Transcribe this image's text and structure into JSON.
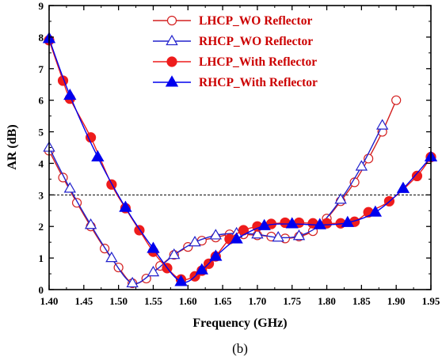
{
  "chart_data": {
    "type": "line",
    "xlabel": "Frequency (GHz)",
    "ylabel": "AR (dB)",
    "caption": "(b)",
    "xlim": [
      1.4,
      1.95
    ],
    "ylim": [
      0,
      9
    ],
    "x_ticks": [
      "1.40",
      "1.45",
      "1.50",
      "1.55",
      "1.60",
      "1.65",
      "1.70",
      "1.75",
      "1.80",
      "1.85",
      "1.90",
      "1.95"
    ],
    "y_ticks": [
      "0",
      "1",
      "2",
      "3",
      "4",
      "5",
      "6",
      "7",
      "8",
      "9"
    ],
    "reference_line": {
      "y": 3,
      "style": "dashed"
    },
    "legend_position": "top-center",
    "series": [
      {
        "name": "LHCP_WO Reflector",
        "color": "#d42020",
        "marker": "circle-open",
        "x": [
          1.4,
          1.42,
          1.44,
          1.46,
          1.48,
          1.5,
          1.52,
          1.54,
          1.56,
          1.58,
          1.6,
          1.62,
          1.64,
          1.66,
          1.68,
          1.7,
          1.72,
          1.74,
          1.76,
          1.78,
          1.8,
          1.82,
          1.84,
          1.86,
          1.88,
          1.9
        ],
        "y": [
          4.4,
          3.55,
          2.75,
          2.0,
          1.3,
          0.7,
          0.2,
          0.35,
          0.75,
          1.1,
          1.35,
          1.55,
          1.65,
          1.75,
          1.75,
          1.72,
          1.68,
          1.62,
          1.68,
          1.85,
          2.25,
          2.8,
          3.4,
          4.15,
          5.0,
          6.0
        ]
      },
      {
        "name": "RHCP_WO Reflector",
        "color": "#2020cc",
        "marker": "triangle-open",
        "x": [
          1.4,
          1.43,
          1.46,
          1.49,
          1.52,
          1.55,
          1.58,
          1.61,
          1.64,
          1.67,
          1.7,
          1.73,
          1.76,
          1.79,
          1.82,
          1.85,
          1.88
        ],
        "y": [
          4.5,
          3.2,
          2.05,
          1.0,
          0.2,
          0.55,
          1.1,
          1.5,
          1.72,
          1.78,
          1.75,
          1.65,
          1.7,
          2.05,
          2.85,
          3.9,
          5.2
        ]
      },
      {
        "name": "LHCP_With Reflector",
        "color": "#ee1c1c",
        "marker": "circle-filled",
        "x": [
          1.4,
          1.42,
          1.43,
          1.46,
          1.49,
          1.51,
          1.53,
          1.55,
          1.57,
          1.59,
          1.61,
          1.62,
          1.63,
          1.64,
          1.66,
          1.68,
          1.7,
          1.72,
          1.74,
          1.76,
          1.78,
          1.8,
          1.82,
          1.84,
          1.86,
          1.89,
          1.93,
          1.95
        ],
        "y": [
          7.9,
          6.62,
          6.05,
          4.82,
          3.33,
          2.58,
          1.88,
          1.2,
          0.68,
          0.32,
          0.42,
          0.6,
          0.82,
          1.05,
          1.6,
          1.88,
          2.0,
          2.08,
          2.12,
          2.12,
          2.1,
          2.1,
          2.1,
          2.15,
          2.45,
          2.8,
          3.6,
          4.2
        ]
      },
      {
        "name": "RHCP_With Reflector",
        "color": "#0000ee",
        "marker": "triangle-filled",
        "x": [
          1.4,
          1.43,
          1.47,
          1.51,
          1.55,
          1.59,
          1.62,
          1.64,
          1.67,
          1.71,
          1.75,
          1.79,
          1.83,
          1.87,
          1.91,
          1.95
        ],
        "y": [
          7.95,
          6.15,
          4.2,
          2.6,
          1.3,
          0.25,
          0.62,
          1.05,
          1.6,
          2.02,
          2.08,
          2.05,
          2.12,
          2.45,
          3.2,
          4.2
        ]
      }
    ]
  }
}
